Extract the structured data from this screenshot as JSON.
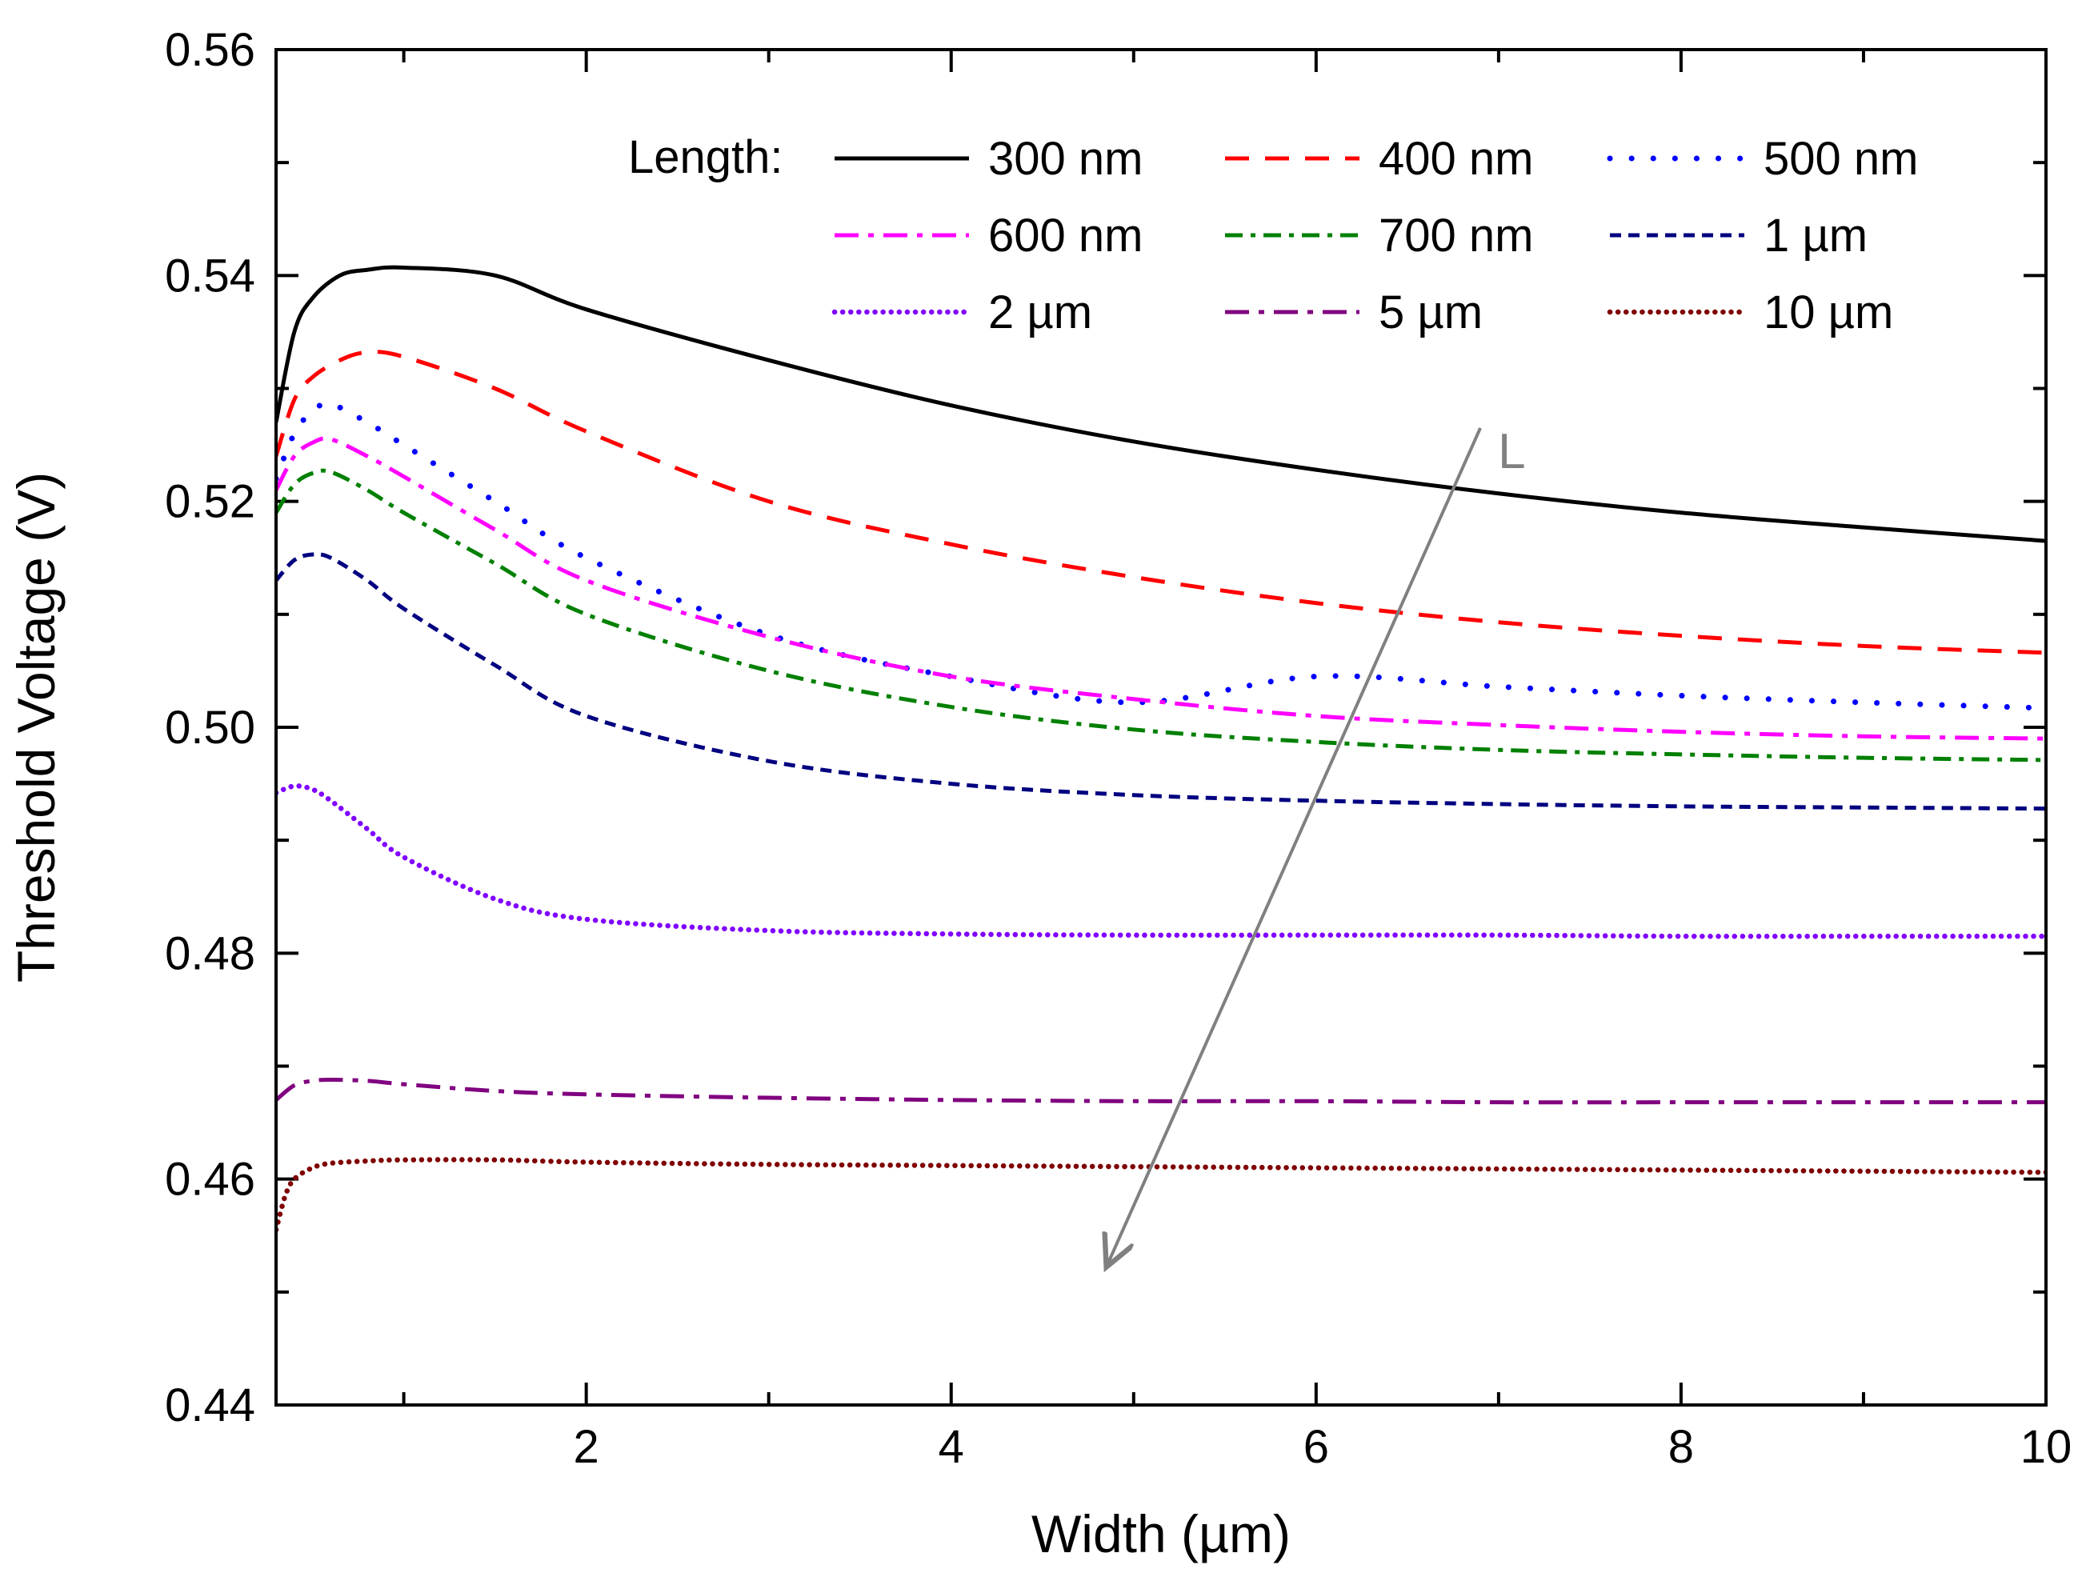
{
  "chart_data": {
    "type": "line",
    "title": "",
    "xlabel": "Width (µm)",
    "ylabel": "Threshold Voltage (V)",
    "xlim": [
      0.3,
      10
    ],
    "ylim": [
      0.44,
      0.56
    ],
    "x_major_ticks": [
      2,
      4,
      6,
      8,
      10
    ],
    "x_minor_ticks": [
      1,
      3,
      5,
      7,
      9
    ],
    "y_major_ticks": [
      0.44,
      0.46,
      0.48,
      0.5,
      0.52,
      0.54,
      0.56
    ],
    "y_minor_ticks": [
      0.45,
      0.47,
      0.49,
      0.51,
      0.53,
      0.55
    ],
    "x_tick_labels": [
      "2",
      "4",
      "6",
      "8",
      "10"
    ],
    "y_tick_labels": [
      "0.44",
      "0.46",
      "0.48",
      "0.50",
      "0.52",
      "0.54",
      "0.56"
    ],
    "grid": false,
    "legend_title": "Length:",
    "legend_position": "top-right",
    "series": [
      {
        "name": "300 nm",
        "color": "#000000",
        "dash": "solid",
        "x": [
          0.3,
          0.4,
          0.5,
          0.65,
          0.8,
          1.0,
          1.5,
          2.0,
          3.0,
          4.0,
          5.0,
          6.0,
          7.0,
          8.0,
          9.0,
          10.0
        ],
        "y": [
          0.527,
          0.535,
          0.538,
          0.54,
          0.5405,
          0.5407,
          0.54,
          0.537,
          0.5325,
          0.5285,
          0.5253,
          0.5228,
          0.5207,
          0.519,
          0.5177,
          0.5165
        ]
      },
      {
        "name": "400 nm",
        "color": "#ff0000",
        "dash": "long-dash",
        "x": [
          0.3,
          0.4,
          0.5,
          0.65,
          0.8,
          1.0,
          1.5,
          2.0,
          3.0,
          4.0,
          5.0,
          6.0,
          7.0,
          8.0,
          9.0,
          10.0
        ],
        "y": [
          0.524,
          0.529,
          0.531,
          0.5325,
          0.5332,
          0.5328,
          0.53,
          0.5262,
          0.52,
          0.5162,
          0.5133,
          0.511,
          0.5093,
          0.5081,
          0.5072,
          0.5066
        ]
      },
      {
        "name": "500 nm",
        "color": "#0000ff",
        "dash": "dot",
        "x": [
          0.3,
          0.4,
          0.5,
          0.6,
          0.8,
          1.0,
          1.5,
          2.0,
          3.0,
          4.0,
          5.0,
          6.0,
          7.0,
          8.0,
          9.0,
          10.0
        ],
        "y": [
          0.522,
          0.526,
          0.528,
          0.5286,
          0.527,
          0.525,
          0.52,
          0.515,
          0.5082,
          0.5045,
          0.5022,
          0.5045,
          0.5036,
          0.5028,
          0.5022,
          0.5017
        ]
      },
      {
        "name": "600 nm",
        "color": "#ff00ff",
        "dash": "dash-dot",
        "x": [
          0.3,
          0.4,
          0.5,
          0.6,
          0.8,
          1.0,
          1.5,
          2.0,
          3.0,
          4.0,
          5.0,
          6.0,
          7.0,
          8.0,
          9.0,
          10.0
        ],
        "y": [
          0.521,
          0.524,
          0.5252,
          0.5255,
          0.524,
          0.5222,
          0.5175,
          0.513,
          0.508,
          0.5045,
          0.5025,
          0.501,
          0.5002,
          0.4996,
          0.4992,
          0.499
        ]
      },
      {
        "name": "700 nm",
        "color": "#008000",
        "dash": "dash-dot-dot",
        "x": [
          0.3,
          0.4,
          0.5,
          0.6,
          0.8,
          1.0,
          1.5,
          2.0,
          3.0,
          4.0,
          5.0,
          6.0,
          7.0,
          8.0,
          9.0,
          10.0
        ],
        "y": [
          0.519,
          0.5215,
          0.5225,
          0.5226,
          0.521,
          0.519,
          0.5145,
          0.51,
          0.505,
          0.5018,
          0.4998,
          0.4987,
          0.498,
          0.4976,
          0.4973,
          0.4971
        ]
      },
      {
        "name": "1 µm",
        "color": "#000080",
        "dash": "short-dash",
        "x": [
          0.3,
          0.4,
          0.5,
          0.6,
          0.8,
          1.0,
          1.5,
          2.0,
          3.0,
          4.0,
          5.0,
          6.0,
          7.0,
          8.0,
          9.0,
          10.0
        ],
        "y": [
          0.513,
          0.5148,
          0.5153,
          0.515,
          0.513,
          0.5105,
          0.5055,
          0.501,
          0.497,
          0.495,
          0.494,
          0.4935,
          0.4932,
          0.493,
          0.4929,
          0.4928
        ]
      },
      {
        "name": "2 µm",
        "color": "#8000ff",
        "dash": "fine-dot",
        "x": [
          0.3,
          0.4,
          0.5,
          0.6,
          0.8,
          1.0,
          1.5,
          2.0,
          3.0,
          4.0,
          5.0,
          6.0,
          7.0,
          8.0,
          9.0,
          10.0
        ],
        "y": [
          0.4942,
          0.4948,
          0.4945,
          0.4935,
          0.491,
          0.4885,
          0.4848,
          0.483,
          0.482,
          0.4817,
          0.4816,
          0.4816,
          0.4816,
          0.4815,
          0.4815,
          0.4815
        ]
      },
      {
        "name": "5 µm",
        "color": "#800080",
        "dash": "dash-dot",
        "x": [
          0.3,
          0.4,
          0.5,
          0.6,
          0.8,
          1.0,
          1.5,
          2.0,
          3.0,
          4.0,
          5.0,
          6.0,
          7.0,
          8.0,
          9.0,
          10.0
        ],
        "y": [
          0.467,
          0.4683,
          0.4687,
          0.4688,
          0.4687,
          0.4684,
          0.4678,
          0.4675,
          0.4672,
          0.467,
          0.4669,
          0.4669,
          0.4668,
          0.4668,
          0.4668,
          0.4668
        ]
      },
      {
        "name": "10 µm",
        "color": "#800000",
        "dash": "fine-dot",
        "x": [
          0.3,
          0.35,
          0.4,
          0.5,
          0.6,
          0.8,
          1.0,
          1.5,
          2.0,
          3.0,
          4.0,
          5.0,
          6.0,
          7.0,
          8.0,
          9.0,
          10.0
        ],
        "y": [
          0.4555,
          0.4585,
          0.46,
          0.461,
          0.4614,
          0.4616,
          0.4617,
          0.4617,
          0.4615,
          0.4613,
          0.4612,
          0.4611,
          0.461,
          0.4609,
          0.4608,
          0.4607,
          0.4606
        ]
      }
    ],
    "annotation": {
      "text": "L",
      "color": "#808080",
      "arrow_from": [
        6.9,
        0.5265
      ],
      "arrow_to": [
        4.85,
        0.4522
      ]
    }
  }
}
